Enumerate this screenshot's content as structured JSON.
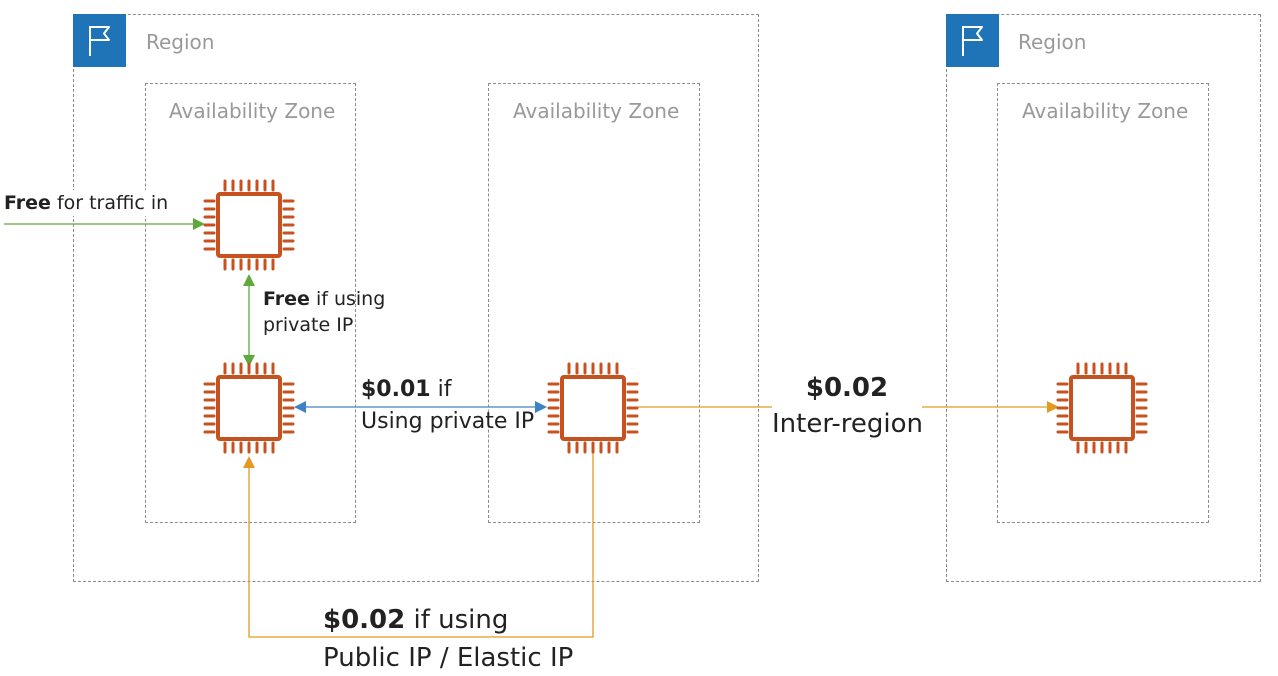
{
  "regions": [
    {
      "label": "Region"
    },
    {
      "label": "Region"
    }
  ],
  "zones": [
    {
      "label": "Availability Zone"
    },
    {
      "label": "Availability Zone"
    },
    {
      "label": "Availability Zone"
    }
  ],
  "labels": {
    "traffic_in_bold": "Free",
    "traffic_in_rest": " for traffic in",
    "private_same_az_bold": "Free",
    "private_same_az_rest_1": " if using",
    "private_same_az_rest_2": "private IP",
    "cross_az_bold": "$0.01",
    "cross_az_rest_1": " if",
    "cross_az_rest_2": "Using private IP",
    "inter_region_bold": "$0.02",
    "inter_region_rest": "Inter-region",
    "public_bold": "$0.02",
    "public_rest_1": " if using",
    "public_rest_2": "Public IP / Elastic IP"
  },
  "icons": {
    "region": "flag-icon",
    "instance": "ec2-instance-chip-icon"
  },
  "colors": {
    "region_flag_bg": "#1f73b7",
    "instance": "#c7511f",
    "free_arrow": "#5fa83c",
    "private_arrow": "#3d83c4",
    "paid_arrow": "#e29a23",
    "border": "#8c8c8c",
    "label": "#999999"
  }
}
